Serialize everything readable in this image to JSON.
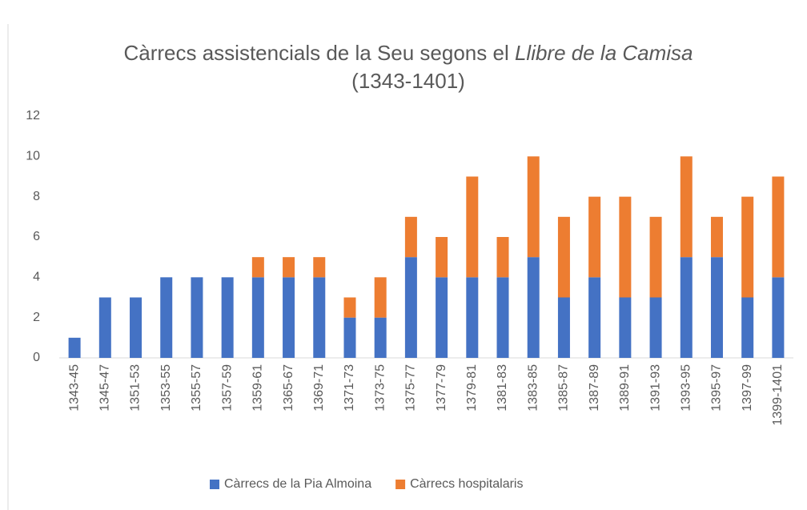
{
  "chart_data": {
    "type": "stacked_bar",
    "title": [
      "Càrrecs assistencials de la Seu segons el ",
      "Llibre de la Camisa",
      "(1343-1401)"
    ],
    "categories": [
      "1343-45",
      "1345-47",
      "1351-53",
      "1353-55",
      "1355-57",
      "1357-59",
      "1359-61",
      "1365-67",
      "1369-71",
      "1371-73",
      "1373-75",
      "1375-77",
      "1377-79",
      "1379-81",
      "1381-83",
      "1383-85",
      "1385-87",
      "1387-89",
      "1389-91",
      "1391-93",
      "1393-95",
      "1395-97",
      "1397-99",
      "1399-1401"
    ],
    "series": [
      {
        "name": "Càrrecs de la Pia Almoina",
        "color": "#4472c4",
        "values": [
          1,
          3,
          3,
          4,
          4,
          4,
          4,
          4,
          4,
          2,
          2,
          5,
          4,
          4,
          4,
          5,
          3,
          4,
          3,
          3,
          5,
          5,
          3,
          4
        ]
      },
      {
        "name": "Càrrecs hospitalaris",
        "color": "#ed7d31",
        "values": [
          0,
          0,
          0,
          0,
          0,
          0,
          1,
          1,
          1,
          1,
          2,
          2,
          2,
          5,
          2,
          5,
          4,
          4,
          5,
          4,
          5,
          2,
          5,
          5
        ]
      }
    ],
    "ylim": [
      0,
      12
    ],
    "yticks": [
      0,
      2,
      4,
      6,
      8,
      10,
      12
    ],
    "grid": false,
    "legend": "bottom"
  }
}
